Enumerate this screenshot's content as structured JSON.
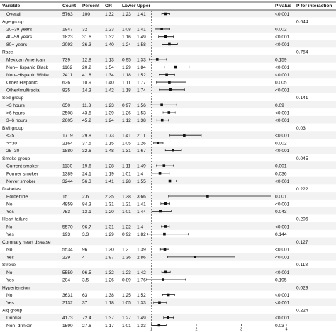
{
  "chart_data": {
    "type": "forest",
    "headers": {
      "variable": "Variable",
      "count": "Count",
      "percent": "Percent",
      "or": "OR",
      "lower": "Lower",
      "upper": "Upper",
      "p_value": "P value",
      "p_interaction": "P for interaction"
    },
    "x_axis": {
      "ticks": [
        "1",
        "2",
        "3",
        "4"
      ],
      "range": [
        0.75,
        4.0
      ],
      "reference": 1
    },
    "rows": [
      {
        "label": "Overall",
        "level": 1,
        "count": "5763",
        "percent": "100",
        "or": 1.32,
        "lower": 1.23,
        "upper": 1.41,
        "p": "<0.001",
        "pint": ""
      },
      {
        "label": "Age group",
        "level": 0,
        "pint": "0.644"
      },
      {
        "label": "20–39 years",
        "level": 1,
        "count": "1847",
        "percent": "32",
        "or": 1.23,
        "lower": 1.08,
        "upper": 1.41,
        "p": "0.002",
        "pint": ""
      },
      {
        "label": "40–59 years",
        "level": 1,
        "count": "1823",
        "percent": "31.6",
        "or": 1.32,
        "lower": 1.16,
        "upper": 1.49,
        "p": "<0.001",
        "pint": ""
      },
      {
        "label": "80+ years",
        "level": 1,
        "count": "2093",
        "percent": "36.3",
        "or": 1.4,
        "lower": 1.24,
        "upper": 1.58,
        "p": "<0.001",
        "pint": ""
      },
      {
        "label": "Race",
        "level": 0,
        "pint": "0.754"
      },
      {
        "label": "Mexican American",
        "level": 1,
        "count": "739",
        "percent": "12.8",
        "or": 1.13,
        "lower": 0.95,
        "upper": 1.33,
        "p": "0.159",
        "pint": ""
      },
      {
        "label": "Non–Hispanic Black",
        "level": 1,
        "count": "1162",
        "percent": "20.2",
        "or": 1.54,
        "lower": 1.29,
        "upper": 1.84,
        "p": "<0.001",
        "pint": ""
      },
      {
        "label": "Non–Hispanic White",
        "level": 1,
        "count": "2411",
        "percent": "41.8",
        "or": 1.34,
        "lower": 1.18,
        "upper": 1.52,
        "p": "<0.001",
        "pint": ""
      },
      {
        "label": "Other Hispanic",
        "level": 1,
        "count": "626",
        "percent": "10.9",
        "or": 1.4,
        "lower": 1.11,
        "upper": 1.77,
        "p": "0.005",
        "pint": ""
      },
      {
        "label": "Other/multiracial",
        "level": 1,
        "count": "825",
        "percent": "14.3",
        "or": 1.42,
        "lower": 1.18,
        "upper": 1.74,
        "p": "<0.001",
        "pint": ""
      },
      {
        "label": "Sed  group",
        "level": 0,
        "pint": "0.141"
      },
      {
        "label": "<3 hours",
        "level": 1,
        "count": "650",
        "percent": "11.3",
        "or": 1.23,
        "lower": 0.97,
        "upper": 1.56,
        "p": "0.09",
        "pint": ""
      },
      {
        "label": ">6 hours",
        "level": 1,
        "count": "2508",
        "percent": "43.5",
        "or": 1.39,
        "lower": 1.26,
        "upper": 1.53,
        "p": "<0.001",
        "pint": ""
      },
      {
        "label": "3–6 hours",
        "level": 1,
        "count": "2605",
        "percent": "45.2",
        "or": 1.24,
        "lower": 1.12,
        "upper": 1.38,
        "p": "<0.001",
        "pint": ""
      },
      {
        "label": "BMI  group",
        "level": 0,
        "pint": "0.03"
      },
      {
        "label": "<25",
        "level": 1,
        "count": "1719",
        "percent": "29.8",
        "or": 1.73,
        "lower": 1.41,
        "upper": 2.11,
        "p": "<0.001",
        "pint": ""
      },
      {
        "label": ">=30",
        "level": 1,
        "count": "2164",
        "percent": "37.5",
        "or": 1.15,
        "lower": 1.05,
        "upper": 1.26,
        "p": "0.002",
        "pint": ""
      },
      {
        "label": "25–30",
        "level": 1,
        "count": "1880",
        "percent": "32.6",
        "or": 1.48,
        "lower": 1.31,
        "upper": 1.67,
        "p": "<0.001",
        "pint": ""
      },
      {
        "label": "Smoke group",
        "level": 0,
        "pint": "0.045"
      },
      {
        "label": "Current smoker",
        "level": 1,
        "count": "1130",
        "percent": "19.6",
        "or": 1.28,
        "lower": 1.11,
        "upper": 1.49,
        "p": "0.001",
        "pint": ""
      },
      {
        "label": "Former smoker",
        "level": 1,
        "count": "1389",
        "percent": "24.1",
        "or": 1.19,
        "lower": 1.01,
        "upper": 1.4,
        "p": "0.036",
        "pint": ""
      },
      {
        "label": "Never smoker",
        "level": 1,
        "count": "3244",
        "percent": "56.3",
        "or": 1.41,
        "lower": 1.28,
        "upper": 1.55,
        "p": "<0.001",
        "pint": ""
      },
      {
        "label": "Diabetes",
        "level": 0,
        "pint": "0.222"
      },
      {
        "label": "Borderline",
        "level": 1,
        "count": "151",
        "percent": "2.6",
        "or": 2.25,
        "lower": 1.38,
        "upper": 3.66,
        "p": "0.001",
        "pint": ""
      },
      {
        "label": "No",
        "level": 1,
        "count": "4859",
        "percent": "84.3",
        "or": 1.31,
        "lower": 1.21,
        "upper": 1.41,
        "p": "<0.001",
        "pint": ""
      },
      {
        "label": "Yes",
        "level": 1,
        "count": "753",
        "percent": "13.1",
        "or": 1.2,
        "lower": 1.01,
        "upper": 1.44,
        "p": "0.043",
        "pint": ""
      },
      {
        "label": "Heart failure",
        "level": 0,
        "pint": "0.206"
      },
      {
        "label": "No",
        "level": 1,
        "count": "5570",
        "percent": "96.7",
        "or": 1.31,
        "lower": 1.22,
        "upper": 1.4,
        "p": "<0.001",
        "pint": ""
      },
      {
        "label": "Yes",
        "level": 1,
        "count": "193",
        "percent": "3.3",
        "or": 1.29,
        "lower": 0.92,
        "upper": 1.82,
        "p": "0.144",
        "pint": ""
      },
      {
        "label": "Coronary heart disease",
        "level": 0,
        "pint": "0.127"
      },
      {
        "label": "No",
        "level": 1,
        "count": "5534",
        "percent": "96",
        "or": 1.3,
        "lower": 1.2,
        "upper": 1.39,
        "p": "<0.001",
        "pint": ""
      },
      {
        "label": "Yes",
        "level": 1,
        "count": "229",
        "percent": "4",
        "or": 1.97,
        "lower": 1.36,
        "upper": 2.86,
        "p": "<0.001",
        "pint": ""
      },
      {
        "label": "Stroke",
        "level": 0,
        "pint": "0.118"
      },
      {
        "label": "No",
        "level": 1,
        "count": "5559",
        "percent": "96.5",
        "or": 1.32,
        "lower": 1.23,
        "upper": 1.42,
        "p": "<0.001",
        "pint": ""
      },
      {
        "label": "Yes",
        "level": 1,
        "count": "204",
        "percent": "3.5",
        "or": 1.26,
        "lower": 0.89,
        "upper": 1.76,
        "p": "0.195",
        "pint": ""
      },
      {
        "label": "Hypertension",
        "level": 0,
        "pint": "0.029"
      },
      {
        "label": "No",
        "level": 1,
        "count": "3631",
        "percent": "63",
        "or": 1.38,
        "lower": 1.25,
        "upper": 1.52,
        "p": "<0.001",
        "pint": ""
      },
      {
        "label": "Yes",
        "level": 1,
        "count": "2132",
        "percent": "37",
        "or": 1.18,
        "lower": 1.05,
        "upper": 1.33,
        "p": "<0.001",
        "pint": ""
      },
      {
        "label": "Alq group",
        "level": 0,
        "pint": "0.224"
      },
      {
        "label": "Drinker",
        "level": 1,
        "count": "4173",
        "percent": "72.4",
        "or": 1.37,
        "lower": 1.27,
        "upper": 1.49,
        "p": "<0.001",
        "pint": ""
      },
      {
        "label": "Non–drinker",
        "level": 1,
        "count": "1590",
        "percent": "27.6",
        "or": 1.17,
        "lower": 1.01,
        "upper": 1.33,
        "p": "0.03",
        "pint": ""
      }
    ]
  }
}
